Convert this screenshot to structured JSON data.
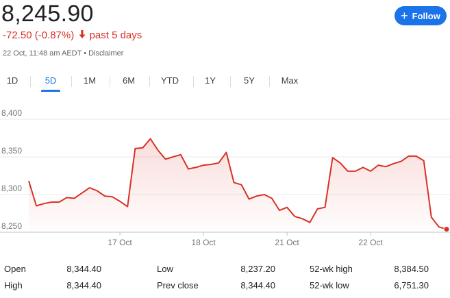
{
  "quote": {
    "price": "8,245.90",
    "change": "-72.50 (-0.87%)",
    "period": "past 5 days",
    "meta": "22 Oct, 11:48 am AEDT • Disclaimer",
    "follow_label": "Follow"
  },
  "colors": {
    "negative": "#d93025",
    "accent": "#1a73e8",
    "grid": "#e8eaed"
  },
  "tabs": [
    {
      "label": "1D",
      "active": false
    },
    {
      "label": "5D",
      "active": true
    },
    {
      "label": "1M",
      "active": false
    },
    {
      "label": "6M",
      "active": false
    },
    {
      "label": "YTD",
      "active": false
    },
    {
      "label": "1Y",
      "active": false
    },
    {
      "label": "5Y",
      "active": false
    },
    {
      "label": "Max",
      "active": false
    }
  ],
  "chart_data": {
    "type": "area",
    "title": "",
    "xlabel": "",
    "ylabel": "",
    "ylim": [
      8250,
      8400
    ],
    "y_ticks": [
      8250,
      8300,
      8350,
      8400
    ],
    "y_tick_labels": [
      "8,250",
      "8,300",
      "8,350",
      "8,400"
    ],
    "x_tick_labels": [
      {
        "label": "17 Oct",
        "index": 12
      },
      {
        "label": "18 Oct",
        "index": 23
      },
      {
        "label": "21 Oct",
        "index": 34
      },
      {
        "label": "22 Oct",
        "index": 45
      }
    ],
    "grid": true,
    "series": [
      {
        "values": [
          8318,
          8285,
          8288,
          8290,
          8290,
          8296,
          8295,
          8302,
          8309,
          8305,
          8298,
          8297,
          8291,
          8284,
          8361,
          8362,
          8374,
          8359,
          8347,
          8350,
          8353,
          8334,
          8336,
          8339,
          8340,
          8342,
          8356,
          8316,
          8313,
          8294,
          8298,
          8300,
          8295,
          8279,
          8283,
          8271,
          8268,
          8263,
          8281,
          8283,
          8349,
          8342,
          8331,
          8331,
          8336,
          8331,
          8339,
          8337,
          8341,
          8344,
          8351,
          8351,
          8345,
          8270,
          8257,
          8254
        ]
      }
    ]
  },
  "stats": [
    {
      "label": "Open",
      "value": "8,344.40"
    },
    {
      "label": "High",
      "value": "8,344.40"
    },
    {
      "label": "Low",
      "value": "8,237.20"
    },
    {
      "label": "Prev close",
      "value": "8,344.40"
    },
    {
      "label": "52-wk high",
      "value": "8,384.50"
    },
    {
      "label": "52-wk low",
      "value": "6,751.30"
    }
  ]
}
